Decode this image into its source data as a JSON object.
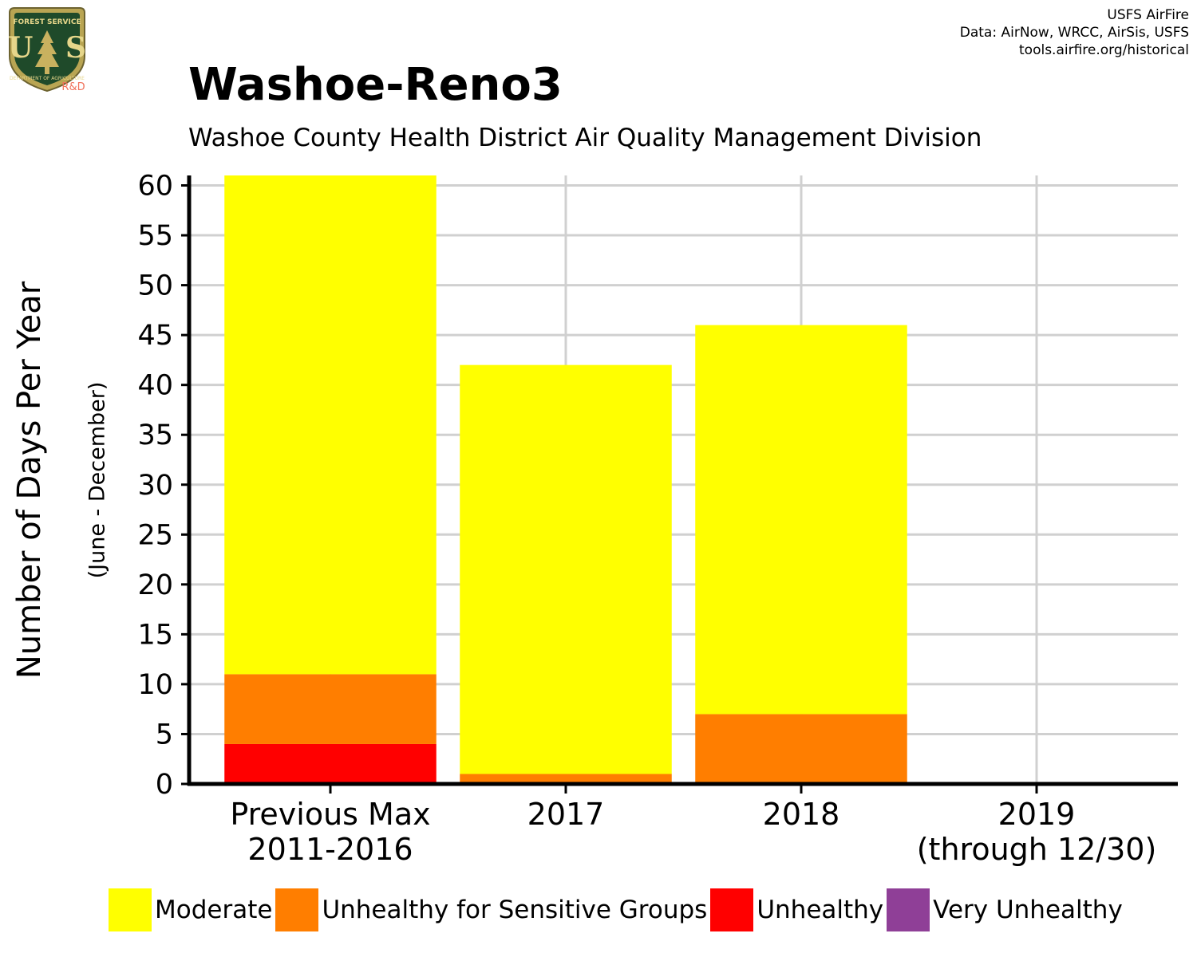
{
  "credit": {
    "line1": "USFS AirFire",
    "line2": "Data: AirNow, WRCC, AirSis, USFS",
    "line3": "tools.airfire.org/historical"
  },
  "logo": {
    "icon": "usda-forest-service-shield",
    "top_text": "FOREST SERVICE",
    "main_text": "U S",
    "bottom_text": "DEPARTMENT OF AGRICULTURE",
    "tag": "R&D"
  },
  "chart_data": {
    "type": "bar",
    "stacked": true,
    "title": "Washoe-Reno3",
    "subtitle": "Washoe County Health District Air Quality Management Division",
    "ylabel": "Number of Days Per Year",
    "ylabel_sub": "(June - December)",
    "xlabel": "",
    "ylim": [
      0,
      61
    ],
    "yticks": [
      0,
      5,
      10,
      15,
      20,
      25,
      30,
      35,
      40,
      45,
      50,
      55,
      60
    ],
    "grid": true,
    "legend_position": "bottom",
    "categories": [
      [
        "Previous Max",
        "2011-2016"
      ],
      [
        "2017"
      ],
      [
        "2018"
      ],
      [
        "2019",
        "(through 12/30)"
      ]
    ],
    "series": [
      {
        "name": "Moderate",
        "color": "#FFFF00",
        "values": [
          50,
          41,
          39,
          0
        ]
      },
      {
        "name": "Unhealthy for Sensitive Groups",
        "color": "#FF7E00",
        "values": [
          7,
          1,
          7,
          0
        ]
      },
      {
        "name": "Unhealthy",
        "color": "#FF0000",
        "values": [
          4,
          0,
          0,
          0
        ]
      },
      {
        "name": "Very Unhealthy",
        "color": "#8F3F97",
        "values": [
          0,
          0,
          0,
          0
        ]
      }
    ]
  }
}
